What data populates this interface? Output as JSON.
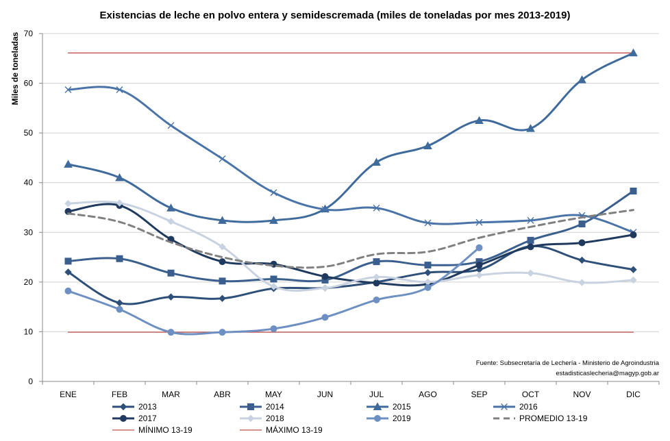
{
  "chart_data": {
    "type": "line",
    "title": "Existencias de leche en polvo entera y semidescremada (miles de toneladas por mes 2013-2019)",
    "ylabel": "Miles de toneladas",
    "xlabel": "",
    "ylim": [
      0,
      70
    ],
    "yticks": [
      0,
      10,
      20,
      30,
      40,
      50,
      60,
      70
    ],
    "categories": [
      "ENE",
      "FEB",
      "MAR",
      "ABR",
      "MAY",
      "JUN",
      "JUL",
      "AGO",
      "SEP",
      "OCT",
      "NOV",
      "DIC"
    ],
    "grid": "horizontal",
    "legend_position": "bottom",
    "source_lines": [
      "Fuente: Subsecretaría de Lechería - Ministerio de Agroindustria",
      "estadisticaslecheria@magyp.gob.ar"
    ],
    "series": [
      {
        "name": "2013",
        "color": "#2e4f78",
        "marker": "diamond",
        "dash": "solid",
        "values": [
          22.0,
          15.8,
          17.0,
          16.7,
          18.7,
          18.8,
          20.0,
          21.9,
          22.5,
          27.2,
          24.4,
          22.5
        ]
      },
      {
        "name": "2014",
        "color": "#3a5f8f",
        "marker": "square",
        "dash": "solid",
        "values": [
          24.2,
          24.7,
          21.8,
          20.2,
          20.6,
          20.4,
          24.1,
          23.4,
          24.1,
          28.4,
          31.7,
          38.3
        ]
      },
      {
        "name": "2015",
        "color": "#3f6a9c",
        "marker": "triangle",
        "dash": "solid",
        "values": [
          43.7,
          41.0,
          34.9,
          32.4,
          32.4,
          34.7,
          44.1,
          47.4,
          52.5,
          50.9,
          60.7,
          66.1
        ]
      },
      {
        "name": "2016",
        "color": "#4a73a8",
        "marker": "x",
        "dash": "solid",
        "values": [
          58.7,
          58.7,
          51.5,
          44.8,
          38.0,
          34.6,
          34.9,
          31.9,
          32.0,
          32.4,
          33.4,
          30.0
        ]
      },
      {
        "name": "2017",
        "color": "#1f3a5e",
        "marker": "circle",
        "dash": "solid",
        "values": [
          34.2,
          35.4,
          28.6,
          24.1,
          23.6,
          21.1,
          19.8,
          19.6,
          23.4,
          27.1,
          27.9,
          29.5
        ]
      },
      {
        "name": "2018",
        "color": "#c9d2e1",
        "marker": "diamond",
        "dash": "solid",
        "values": [
          35.8,
          35.9,
          32.2,
          27.1,
          19.1,
          18.8,
          21.0,
          20.0,
          21.4,
          21.8,
          19.9,
          20.4
        ]
      },
      {
        "name": "2019",
        "color": "#6d8fc2",
        "marker": "circle",
        "dash": "solid",
        "values": [
          18.2,
          14.5,
          9.9,
          9.9,
          10.6,
          12.9,
          16.4,
          18.9,
          26.9,
          null,
          null,
          null
        ]
      },
      {
        "name": "PROMEDIO 13-19",
        "color": "#808080",
        "marker": "none",
        "dash": "dashed",
        "values": [
          33.8,
          32.1,
          28.0,
          25.0,
          23.3,
          23.1,
          25.6,
          26.1,
          28.9,
          31.1,
          33.0,
          34.5
        ]
      },
      {
        "name": "MÍNIMO 13-19",
        "color": "#c0504d",
        "marker": "none",
        "dash": "solid",
        "values": [
          9.9,
          9.9,
          9.9,
          9.9,
          9.9,
          9.9,
          9.9,
          9.9,
          9.9,
          9.9,
          9.9,
          9.9
        ]
      },
      {
        "name": "MÁXIMO 13-19",
        "color": "#c0504d",
        "marker": "none",
        "dash": "solid",
        "values": [
          66.1,
          66.1,
          66.1,
          66.1,
          66.1,
          66.1,
          66.1,
          66.1,
          66.1,
          66.1,
          66.1,
          66.1
        ]
      }
    ]
  }
}
